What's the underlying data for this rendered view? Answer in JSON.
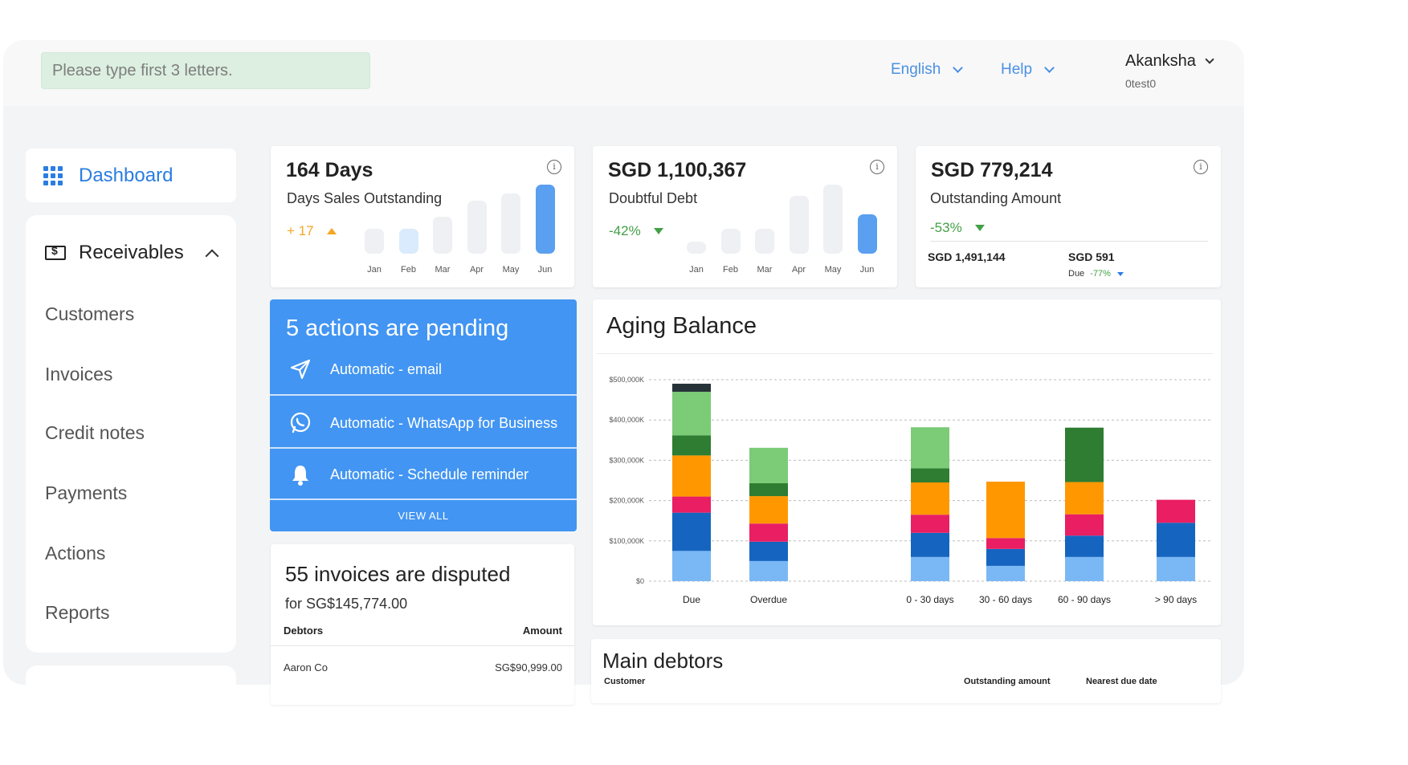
{
  "topbar": {
    "search_placeholder": "Please type first 3 letters.",
    "language": "English",
    "help": "Help",
    "user_name": "Akanksha",
    "user_id": "0test0"
  },
  "sidebar": {
    "dashboard": "Dashboard",
    "section": "Receivables",
    "items": [
      "Customers",
      "Invoices",
      "Credit notes",
      "Payments",
      "Actions",
      "Reports"
    ]
  },
  "kpis": {
    "dso": {
      "title": "164 Days",
      "subtitle": "Days Sales Outstanding",
      "change": "+ 17",
      "color": "#f5a623",
      "months": [
        "Jan",
        "Feb",
        "Mar",
        "Apr",
        "May",
        "Jun"
      ],
      "bar_fractions": [
        0.36,
        0.36,
        0.54,
        0.77,
        0.87,
        1.0
      ],
      "bar_colors": [
        "#eef0f3",
        "#d9ebfc",
        "#eef0f3",
        "#eef0f3",
        "#eef0f3",
        "#5a9ff0"
      ]
    },
    "doubtful": {
      "title": "SGD 1,100,367",
      "subtitle": "Doubtful Debt",
      "change": "-42%",
      "color": "#43a047",
      "months": [
        "Jan",
        "Feb",
        "Mar",
        "Apr",
        "May",
        "Jun"
      ],
      "bar_fractions": [
        0.18,
        0.36,
        0.36,
        0.84,
        1.0,
        0.57
      ],
      "bar_colors": [
        "#eef0f3",
        "#eef0f3",
        "#eef0f3",
        "#eef0f3",
        "#eef0f3",
        "#5a9ff0"
      ]
    },
    "outstanding": {
      "title": "SGD 779,214",
      "subtitle": "Outstanding Amount",
      "change": "-53%",
      "total": "SGD 1,491,144",
      "due_value": "SGD 591",
      "due_label": "Due",
      "due_change": "-77%"
    }
  },
  "actions": {
    "title": "5 actions are pending",
    "items": [
      "Automatic - email",
      "Automatic - WhatsApp for Business",
      "Automatic - Schedule reminder"
    ],
    "view_all": "VIEW ALL"
  },
  "disputed": {
    "title": "55 invoices are disputed",
    "subtitle": "for SG$145,774.00",
    "col_debtors": "Debtors",
    "col_amount": "Amount",
    "rows": [
      {
        "debtor": "Aaron Co",
        "amount": "SG$90,999.00"
      }
    ]
  },
  "aging": {
    "title": "Aging Balance"
  },
  "chart_data": {
    "type": "bar",
    "stacked": true,
    "categories": [
      "Due",
      "Overdue",
      "",
      "0 - 30 days",
      "30 - 60 days",
      "60 - 90 days",
      "> 90 days"
    ],
    "yticks": [
      "$0",
      "$100,000K",
      "$200,000K",
      "$300,000K",
      "$400,000K",
      "$500,000K"
    ],
    "ylim": [
      0,
      500000
    ],
    "grid": true,
    "series": [
      {
        "color": "#7ab8f5",
        "values": [
          75000,
          50000,
          0,
          60000,
          38000,
          60000,
          60000
        ]
      },
      {
        "color": "#1565c0",
        "values": [
          95000,
          48000,
          0,
          60000,
          42000,
          53000,
          85000
        ]
      },
      {
        "color": "#e91e63",
        "values": [
          40000,
          45000,
          0,
          45000,
          27000,
          53000,
          57000
        ]
      },
      {
        "color": "#ff9800",
        "values": [
          102000,
          68000,
          0,
          80000,
          140000,
          80000,
          0
        ]
      },
      {
        "color": "#2e7d32",
        "values": [
          50000,
          32000,
          0,
          35000,
          0,
          135000,
          0
        ]
      },
      {
        "color": "#7bcb77",
        "values": [
          108000,
          88000,
          0,
          102000,
          0,
          0,
          0
        ]
      },
      {
        "color": "#263238",
        "values": [
          20000,
          0,
          0,
          0,
          0,
          0,
          0
        ]
      }
    ]
  },
  "main_debtors": {
    "title": "Main debtors",
    "col_customer": "Customer",
    "col_outstanding": "Outstanding amount",
    "col_due": "Nearest due date"
  }
}
